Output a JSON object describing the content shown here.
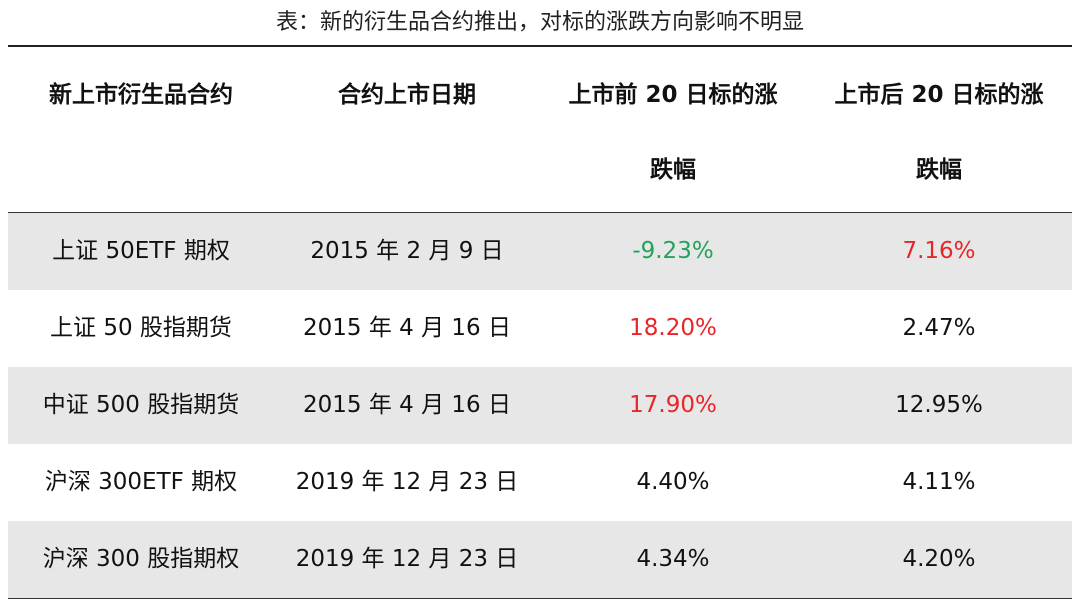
{
  "caption": "表：新的衍生品合约推出，对标的涨跌方向影响不明显",
  "headers": [
    {
      "line1": "新上市衍生品合约",
      "line2": ""
    },
    {
      "line1": "合约上市日期",
      "line2": ""
    },
    {
      "line1": "上市前 20 日标的涨",
      "line2": "跌幅"
    },
    {
      "line1": "上市后 20 日标的涨",
      "line2": "跌幅"
    }
  ],
  "rows": [
    {
      "contract": "上证 50ETF 期权",
      "date": "2015 年 2 月 9 日",
      "before": "-9.23%",
      "after": "7.16%"
    },
    {
      "contract": "上证 50 股指期货",
      "date": "2015 年 4 月 16 日",
      "before": "18.20%",
      "after": "2.47%"
    },
    {
      "contract": "中证 500 股指期货",
      "date": "2015 年 4 月 16 日",
      "before": "17.90%",
      "after": "12.95%"
    },
    {
      "contract": "沪深 300ETF 期权",
      "date": "2019 年 12 月 23 日",
      "before": "4.40%",
      "after": "4.11%"
    },
    {
      "contract": "沪深 300 股指期权",
      "date": "2019 年 12 月 23 日",
      "before": "4.34%",
      "after": "4.20%"
    }
  ],
  "colors": {
    "negative": "#21a35a",
    "positive": "#e8262a",
    "row_shade": "#e7e7e7"
  }
}
